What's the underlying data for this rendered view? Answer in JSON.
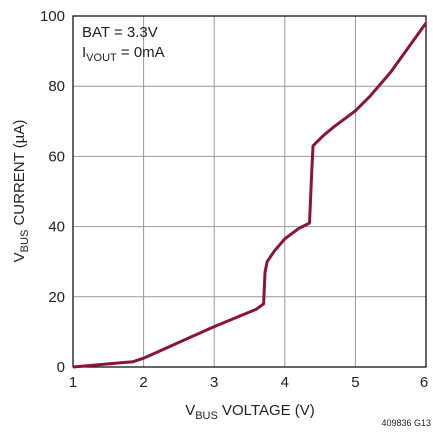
{
  "chart_data": {
    "type": "line",
    "annotations": [
      {
        "main": "BAT = 3.3V"
      },
      {
        "main": "I",
        "sub": "VOUT",
        "rest": " = 0mA"
      }
    ],
    "x_label": {
      "main": "V",
      "sub": "BUS",
      "rest": " VOLTAGE (V)"
    },
    "y_label": {
      "main": "V",
      "sub": "BUS",
      "rest": " CURRENT (µA)"
    },
    "footnote": "409836 G13",
    "x": [
      1,
      1.85,
      2,
      2.5,
      3,
      3.3,
      3.6,
      3.7,
      3.72,
      3.75,
      3.85,
      4,
      4.2,
      4.35,
      4.38,
      4.4,
      4.55,
      4.7,
      5,
      5.2,
      5.5,
      6
    ],
    "series": [
      {
        "color": "#8a1538",
        "values": [
          0,
          1.5,
          2.5,
          7,
          11.5,
          14,
          16.5,
          18,
          27,
          30,
          33,
          36.5,
          39.5,
          41,
          55,
          63,
          66,
          68.5,
          73,
          77,
          84,
          98
        ]
      }
    ],
    "xlim": [
      1,
      6
    ],
    "xticks": [
      1,
      2,
      3,
      4,
      5,
      6
    ],
    "ylim": [
      0,
      100
    ],
    "yticks": [
      0,
      20,
      40,
      60,
      80,
      100
    ],
    "grid": true
  }
}
